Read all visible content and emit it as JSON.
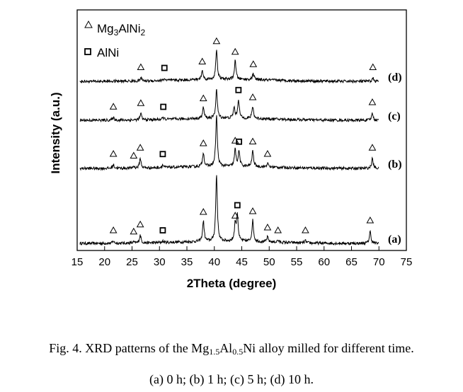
{
  "chart_data": {
    "type": "line",
    "title": "",
    "xlabel": "2Theta (degree)",
    "ylabel": "Intensity (a.u.)",
    "xlim": [
      15,
      75
    ],
    "xticks": [
      15,
      20,
      25,
      30,
      35,
      40,
      45,
      50,
      55,
      60,
      65,
      70,
      75
    ],
    "grid": false,
    "legend_position": "top-left",
    "legend": [
      {
        "marker": "triangle",
        "label_parts": [
          "Mg",
          "3",
          "AlNi",
          "2"
        ]
      },
      {
        "marker": "square",
        "label": "AlNi"
      }
    ],
    "series": [
      {
        "name": "(a)",
        "peaks": [
          {
            "x": 21.6,
            "h": 0.12,
            "marker": "triangle"
          },
          {
            "x": 25.3,
            "h": 0.05,
            "marker": "triangle"
          },
          {
            "x": 26.5,
            "h": 0.45,
            "marker": "triangle"
          },
          {
            "x": 30.6,
            "h": 0.08,
            "marker": "square"
          },
          {
            "x": 38.0,
            "h": 1.16,
            "marker": "triangle"
          },
          {
            "x": 40.4,
            "h": 3.8,
            "marker": null
          },
          {
            "x": 43.8,
            "h": 0.95,
            "marker": "triangle"
          },
          {
            "x": 44.2,
            "h": 1.5,
            "marker": "square"
          },
          {
            "x": 47.0,
            "h": 1.2,
            "marker": "triangle"
          },
          {
            "x": 49.7,
            "h": 0.28,
            "marker": "triangle"
          },
          {
            "x": 51.6,
            "h": 0.12,
            "marker": "triangle"
          },
          {
            "x": 56.6,
            "h": 0.12,
            "marker": "triangle"
          },
          {
            "x": 68.4,
            "h": 0.68,
            "marker": "triangle"
          }
        ]
      },
      {
        "name": "(b)",
        "peaks": [
          {
            "x": 21.6,
            "h": 0.2,
            "marker": "triangle"
          },
          {
            "x": 25.3,
            "h": 0.1,
            "marker": "triangle"
          },
          {
            "x": 26.5,
            "h": 0.55,
            "marker": "triangle"
          },
          {
            "x": 30.6,
            "h": 0.15,
            "marker": "square"
          },
          {
            "x": 38.0,
            "h": 0.8,
            "marker": "triangle"
          },
          {
            "x": 40.4,
            "h": 2.9,
            "marker": null
          },
          {
            "x": 43.8,
            "h": 0.95,
            "marker": "triangle"
          },
          {
            "x": 44.5,
            "h": 0.85,
            "marker": "square"
          },
          {
            "x": 47.0,
            "h": 0.9,
            "marker": "triangle"
          },
          {
            "x": 49.7,
            "h": 0.2,
            "marker": "triangle"
          },
          {
            "x": 68.8,
            "h": 0.55,
            "marker": "triangle"
          }
        ]
      },
      {
        "name": "(c)",
        "peaks": [
          {
            "x": 21.6,
            "h": 0.15,
            "marker": "triangle"
          },
          {
            "x": 26.6,
            "h": 0.35,
            "marker": "triangle"
          },
          {
            "x": 30.7,
            "h": 0.1,
            "marker": "square"
          },
          {
            "x": 38.0,
            "h": 0.62,
            "marker": "triangle"
          },
          {
            "x": 40.4,
            "h": 1.65,
            "marker": null
          },
          {
            "x": 43.6,
            "h": 0.6,
            "marker": null
          },
          {
            "x": 44.4,
            "h": 1.05,
            "marker": "square"
          },
          {
            "x": 47.0,
            "h": 0.68,
            "marker": "triangle"
          },
          {
            "x": 68.8,
            "h": 0.4,
            "marker": "triangle"
          }
        ]
      },
      {
        "name": "(d)",
        "peaks": [
          {
            "x": 26.6,
            "h": 0.18,
            "marker": "triangle"
          },
          {
            "x": 30.9,
            "h": 0.1,
            "marker": "square"
          },
          {
            "x": 37.8,
            "h": 0.5,
            "marker": "triangle"
          },
          {
            "x": 40.4,
            "h": 1.65,
            "marker": "triangle"
          },
          {
            "x": 43.8,
            "h": 1.05,
            "marker": "triangle"
          },
          {
            "x": 47.1,
            "h": 0.35,
            "marker": "triangle"
          },
          {
            "x": 68.9,
            "h": 0.18,
            "marker": "triangle"
          }
        ]
      }
    ]
  },
  "caption": {
    "line1_prefix": "Fig. 4. XRD patterns of the Mg",
    "line1_sub1": "1.5",
    "line1_mid": "Al",
    "line1_sub2": "0.5",
    "line1_suffix": "Ni alloy milled for different time.",
    "line2": "(a) 0 h; (b) 1 h; (c) 5 h; (d) 10 h."
  }
}
